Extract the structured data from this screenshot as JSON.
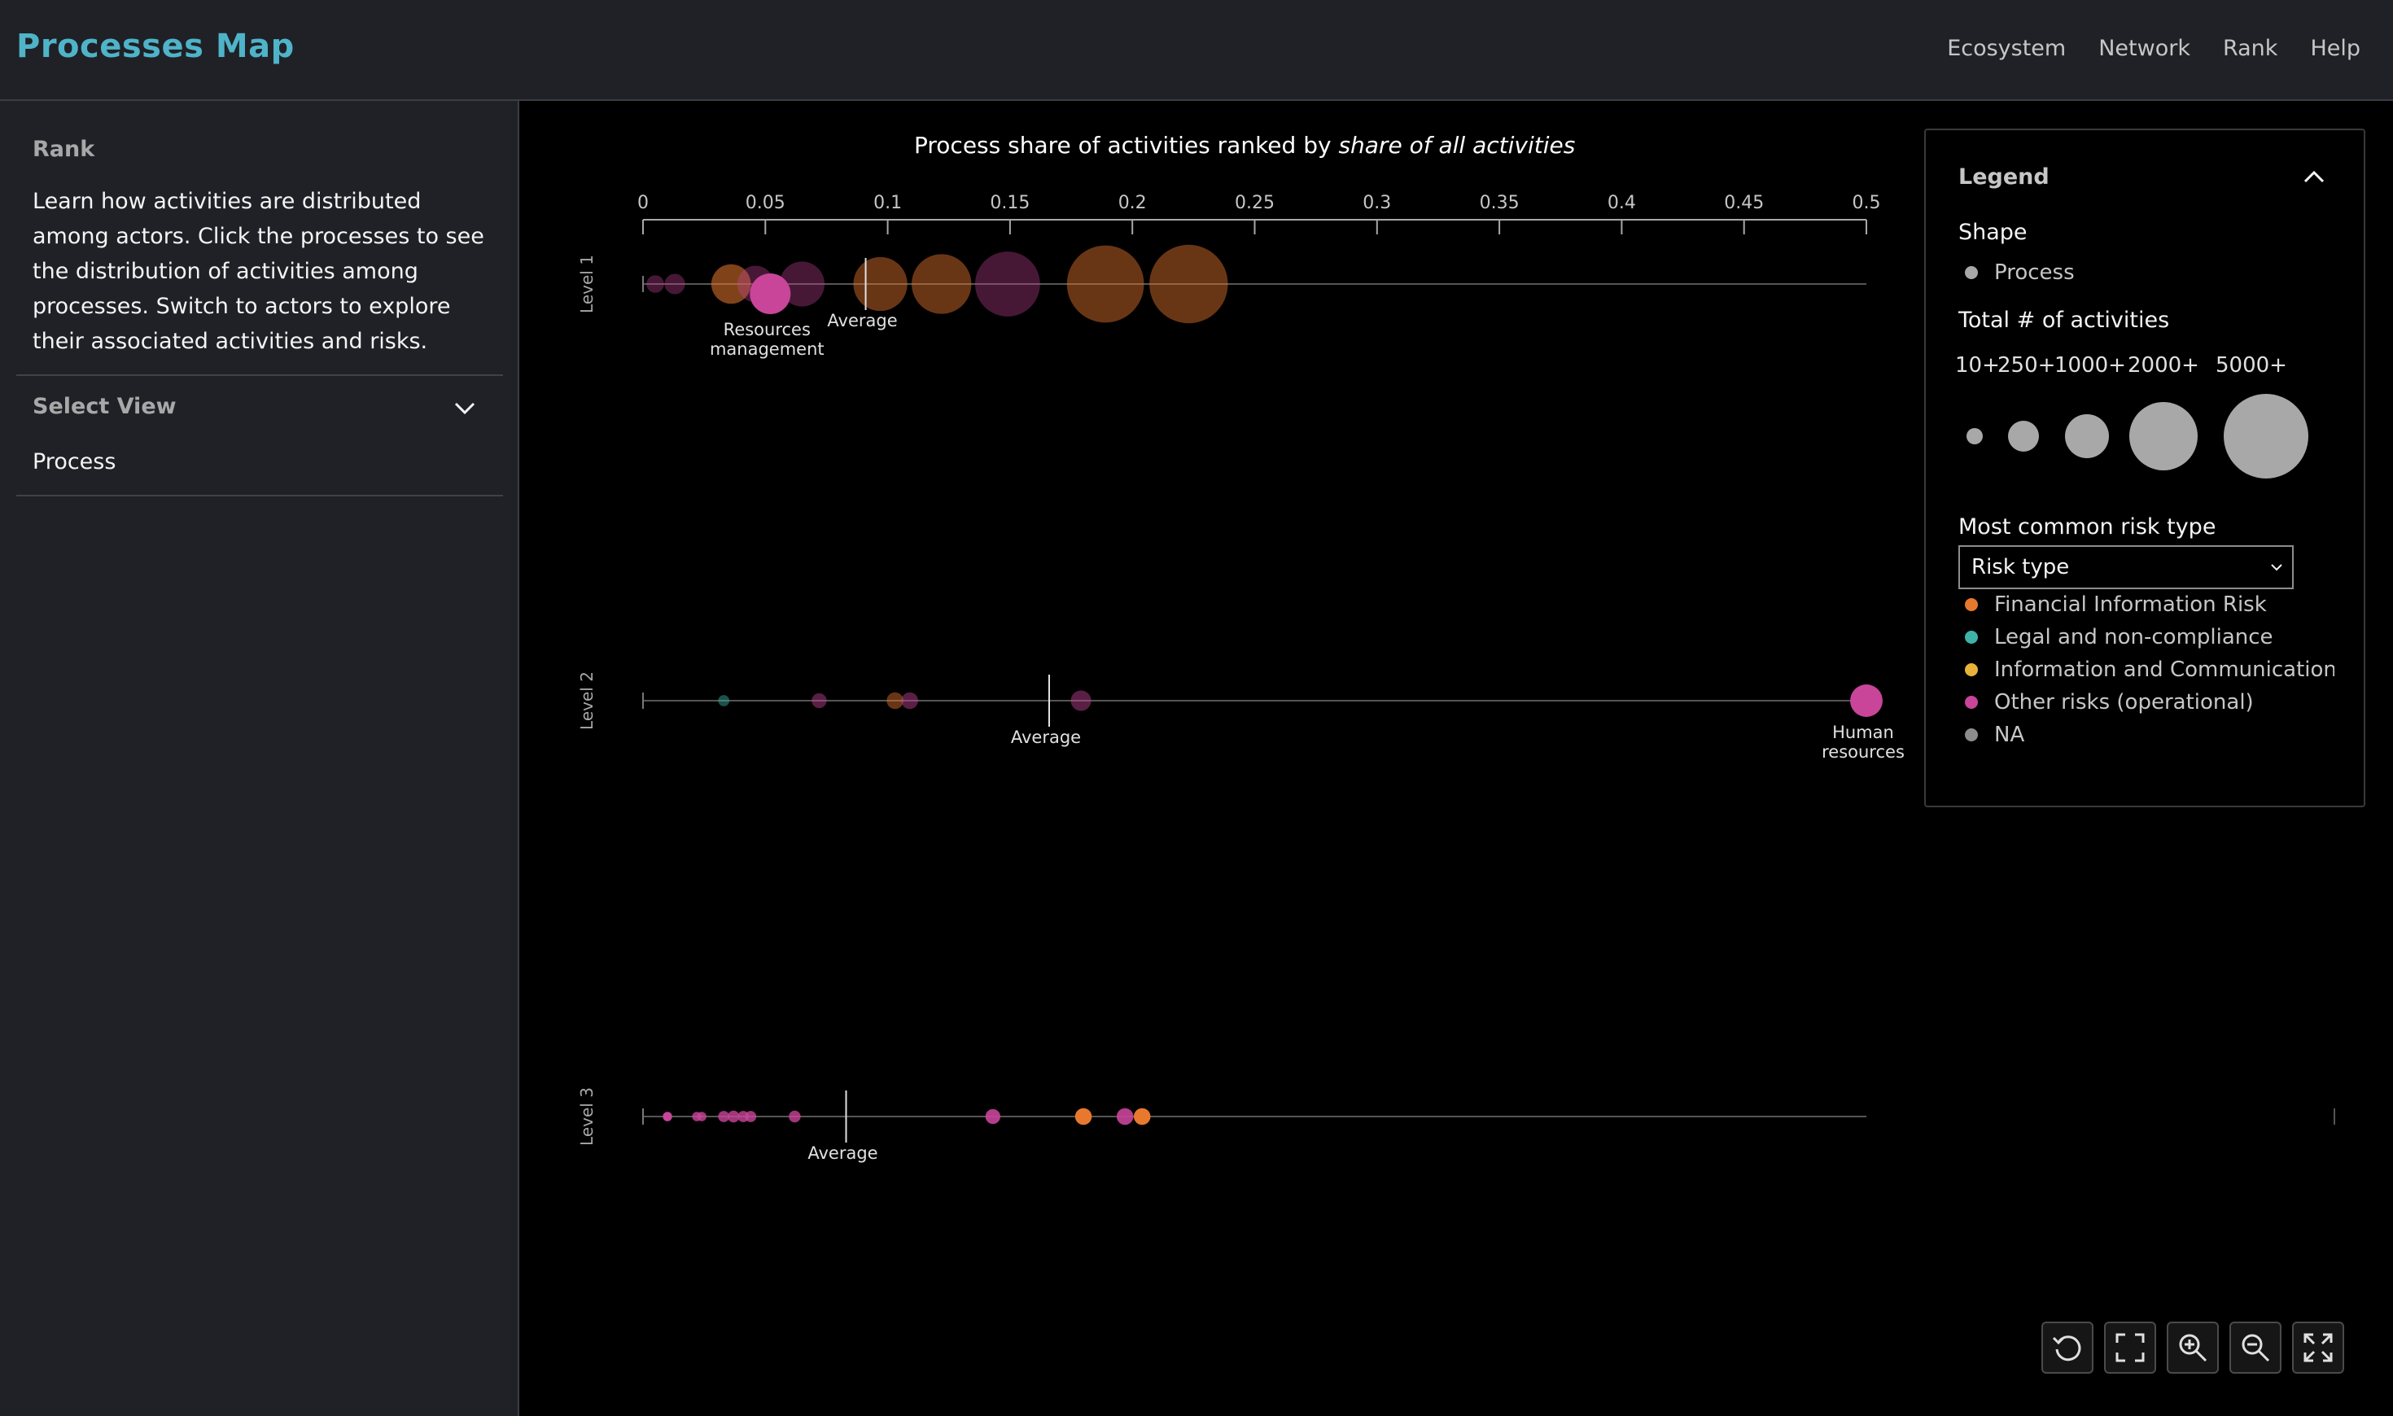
{
  "app": {
    "title": "Processes Map",
    "nav": [
      "Ecosystem",
      "Network",
      "Rank",
      "Help"
    ]
  },
  "sidebar": {
    "heading": "Rank",
    "description": "Learn how activities are distributed among actors. Click the processes to see the distribution of activities among processes. Switch to actors to explore their associated activities and risks.",
    "select_view_label": "Select View",
    "select_view_value": "Process"
  },
  "colors": {
    "financial": "#e8782e",
    "legal": "#3fb2a7",
    "ict": "#e8b23a",
    "other": "#c8459a",
    "na": "#8d8d8d",
    "accent": "#4fb3c9"
  },
  "chart_data": {
    "type": "scatter",
    "title_prefix": "Process share of activities ranked by ",
    "title_emphasis": "share of all activities",
    "x_ticks": [
      "0",
      "0.05",
      "0.1",
      "0.15",
      "0.2",
      "0.25",
      "0.3",
      "0.35",
      "0.4",
      "0.45",
      "0.5"
    ],
    "xlim": [
      0,
      0.5
    ],
    "rows": [
      {
        "label": "Level 1",
        "average": 0.091,
        "average_label": "Average",
        "points": [
          {
            "x": 0.005,
            "activities": 40,
            "risk": "other",
            "opacity": 0.35
          },
          {
            "x": 0.013,
            "activities": 60,
            "risk": "other",
            "opacity": 0.35
          },
          {
            "x": 0.036,
            "activities": 300,
            "risk": "financial",
            "opacity": 0.55
          },
          {
            "x": 0.046,
            "activities": 250,
            "risk": "other",
            "opacity": 0.35
          },
          {
            "x": 0.052,
            "activities": 320,
            "risk": "other",
            "opacity": 1.0,
            "dy": 0.3,
            "name": "Resources management"
          },
          {
            "x": 0.065,
            "activities": 400,
            "risk": "other",
            "opacity": 0.35
          },
          {
            "x": 0.097,
            "activities": 600,
            "risk": "financial",
            "opacity": 0.45
          },
          {
            "x": 0.122,
            "activities": 750,
            "risk": "financial",
            "opacity": 0.45
          },
          {
            "x": 0.149,
            "activities": 900,
            "risk": "other",
            "opacity": 0.35
          },
          {
            "x": 0.189,
            "activities": 1300,
            "risk": "financial",
            "opacity": 0.45
          },
          {
            "x": 0.223,
            "activities": 1350,
            "risk": "financial",
            "opacity": 0.45
          }
        ]
      },
      {
        "label": "Level 2",
        "average": 0.166,
        "average_label": "Average",
        "points": [
          {
            "x": 0.033,
            "activities": 10,
            "risk": "legal",
            "opacity": 0.45
          },
          {
            "x": 0.072,
            "activities": 25,
            "risk": "other",
            "opacity": 0.45
          },
          {
            "x": 0.103,
            "activities": 35,
            "risk": "financial",
            "opacity": 0.45
          },
          {
            "x": 0.109,
            "activities": 35,
            "risk": "other",
            "opacity": 0.45
          },
          {
            "x": 0.179,
            "activities": 60,
            "risk": "other",
            "opacity": 0.45
          },
          {
            "x": 0.5,
            "activities": 190,
            "risk": "other",
            "opacity": 1.0,
            "name": "Human resources"
          }
        ]
      },
      {
        "label": "Level 3",
        "average": 0.083,
        "average_label": "Average",
        "points": [
          {
            "x": 0.01,
            "activities": 5,
            "risk": "other",
            "opacity": 1.0
          },
          {
            "x": 0.022,
            "activities": 5,
            "risk": "other",
            "opacity": 0.8
          },
          {
            "x": 0.024,
            "activities": 5,
            "risk": "other",
            "opacity": 0.8
          },
          {
            "x": 0.033,
            "activities": 10,
            "risk": "other",
            "opacity": 0.8
          },
          {
            "x": 0.037,
            "activities": 12,
            "risk": "other",
            "opacity": 0.8
          },
          {
            "x": 0.041,
            "activities": 10,
            "risk": "other",
            "opacity": 0.8
          },
          {
            "x": 0.044,
            "activities": 10,
            "risk": "other",
            "opacity": 0.8
          },
          {
            "x": 0.062,
            "activities": 12,
            "risk": "other",
            "opacity": 0.8
          },
          {
            "x": 0.143,
            "activities": 25,
            "risk": "other",
            "opacity": 0.9
          },
          {
            "x": 0.18,
            "activities": 35,
            "risk": "financial",
            "opacity": 1.0
          },
          {
            "x": 0.197,
            "activities": 35,
            "risk": "other",
            "opacity": 0.9
          },
          {
            "x": 0.204,
            "activities": 35,
            "risk": "financial",
            "opacity": 1.0
          }
        ]
      }
    ]
  },
  "legend": {
    "title": "Legend",
    "shape_heading": "Shape",
    "shape_item": "Process",
    "size_heading": "Total # of activities",
    "size_labels": [
      "10+",
      "250+",
      "1000+",
      "2000+",
      "5000+"
    ],
    "risk_heading": "Most common risk type",
    "risk_select_value": "Risk type",
    "risk_items": [
      {
        "label": "Financial Information Risk",
        "color": "#e8782e"
      },
      {
        "label": "Legal and non-compliance",
        "color": "#3fb2a7"
      },
      {
        "label": "Information and Communication Te",
        "color": "#e8b23a"
      },
      {
        "label": "Other risks (operational)",
        "color": "#c8459a"
      },
      {
        "label": "NA",
        "color": "#8d8d8d"
      }
    ]
  },
  "controls": [
    {
      "name": "reset-view-button",
      "icon": "reset-icon"
    },
    {
      "name": "fit-view-button",
      "icon": "fit-frame-icon"
    },
    {
      "name": "zoom-in-button",
      "icon": "zoom-in-icon"
    },
    {
      "name": "zoom-out-button",
      "icon": "zoom-out-icon"
    },
    {
      "name": "fullscreen-button",
      "icon": "fullscreen-icon"
    }
  ]
}
